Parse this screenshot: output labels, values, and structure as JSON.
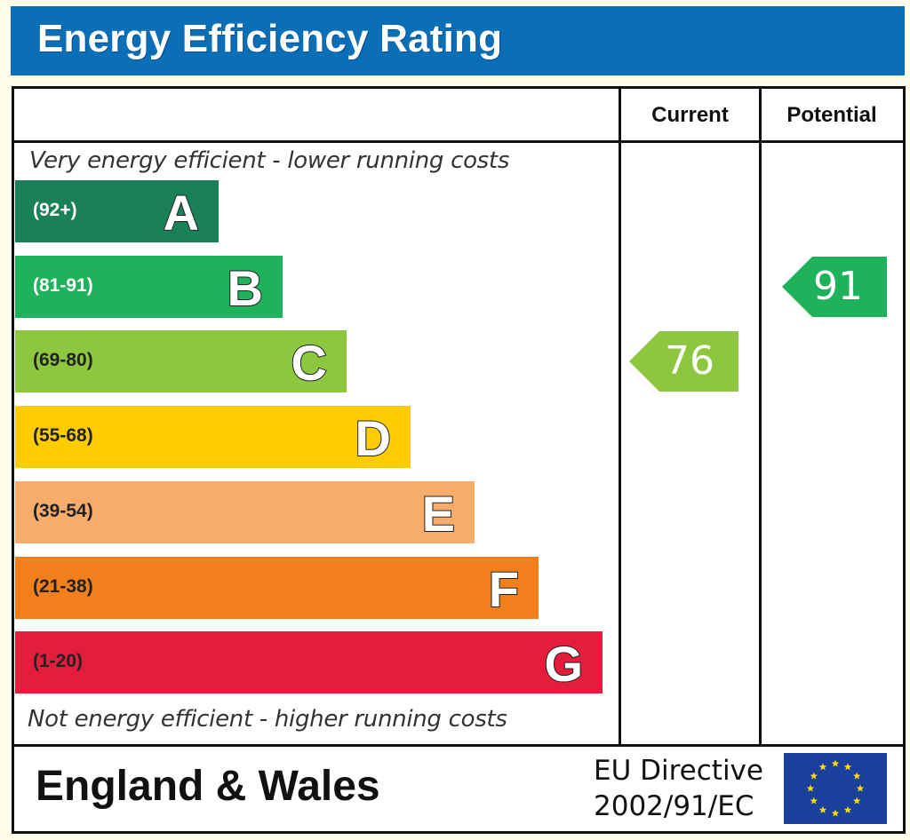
{
  "title": "Energy Efficiency Rating",
  "columns": {
    "current": "Current",
    "potential": "Potential"
  },
  "captions": {
    "top": "Very energy efficient - lower running costs",
    "bottom": "Not energy efficient - higher running costs"
  },
  "footer": {
    "region": "England & Wales",
    "directive_line1": "EU Directive",
    "directive_line2": "2002/91/EC"
  },
  "chart_data": {
    "type": "bar",
    "title": "Energy Efficiency Rating",
    "bands": [
      {
        "letter": "A",
        "range": "(92+)",
        "color": "#1a8059",
        "text_color": "#ffffff"
      },
      {
        "letter": "B",
        "range": "(81-91)",
        "color": "#1fb25a",
        "text_color": "#ffffff"
      },
      {
        "letter": "C",
        "range": "(69-80)",
        "color": "#8dc63f",
        "text_color": "#222222"
      },
      {
        "letter": "D",
        "range": "(55-68)",
        "color": "#ffcc00",
        "text_color": "#222222"
      },
      {
        "letter": "E",
        "range": "(39-54)",
        "color": "#f7ac6b",
        "text_color": "#222222"
      },
      {
        "letter": "F",
        "range": "(21-38)",
        "color": "#f1801c",
        "text_color": "#222222"
      },
      {
        "letter": "G",
        "range": "(1-20)",
        "color": "#e41d3c",
        "text_color": "#222222"
      }
    ],
    "current": {
      "value": "76",
      "band": "C",
      "color": "#8dc63f"
    },
    "potential": {
      "value": "91",
      "band": "B",
      "color": "#1fb25a"
    }
  }
}
